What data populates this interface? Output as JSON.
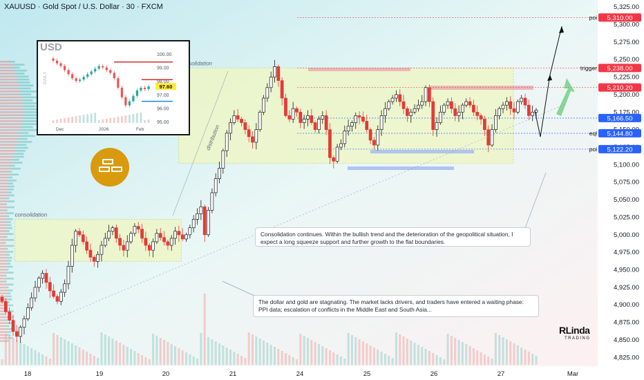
{
  "header": {
    "title": "XAUUSD · Gold Spot / U.S. Dollar · 30 · FXCM"
  },
  "chart_data": {
    "type": "candlestick",
    "y_axis": {
      "range": [
        4812.5,
        5335
      ],
      "ticks": [
        "5,325.00",
        "5,300.00",
        "5,275.00",
        "5,250.00",
        "5,225.00",
        "5,200.00",
        "5,175.00",
        "5,150.00",
        "5,125.00",
        "5,100.00",
        "5,075.00",
        "5,050.00",
        "5,025.00",
        "5,000.00",
        "4,975.00",
        "4,950.00",
        "4,925.00",
        "4,900.00",
        "4,875.00",
        "4,850.00",
        "4,825.00"
      ]
    },
    "x_axis": {
      "ticks": [
        "18",
        "19",
        "20",
        "21",
        "24",
        "25",
        "26",
        "27",
        "Mar"
      ]
    },
    "price_tags": [
      {
        "label": "poi",
        "value": 5310.0,
        "text": "5,310.00",
        "color": "#f23645"
      },
      {
        "label": "trigger",
        "value": 5238.0,
        "text": "5,238.00",
        "color": "#f23645"
      },
      {
        "label": "",
        "value": 5210.2,
        "text": "5,210.20",
        "color": "#f23645"
      },
      {
        "label": "",
        "value": 5166.5,
        "text": "5,166.50",
        "color": "#2962ff"
      },
      {
        "label": "eql",
        "value": 5144.8,
        "text": "5,144.80",
        "color": "#2962ff"
      },
      {
        "label": "poi",
        "value": 5122.2,
        "text": "5,122.20",
        "color": "#2962ff"
      }
    ],
    "zones": [
      {
        "label": "consolidation",
        "from_day": 0.5,
        "to_day": 3.2,
        "low": 4962,
        "high": 5022
      },
      {
        "label": "Consolidation",
        "from_day": 3.16,
        "to_day": 8.15,
        "low": 5102,
        "high": 5238
      }
    ],
    "annotations": [
      "distribution"
    ],
    "closes": [
      4905,
      4890,
      4878,
      4862,
      4855,
      4868,
      4880,
      4896,
      4910,
      4925,
      4938,
      4945,
      4932,
      4920,
      4912,
      4905,
      4918,
      4930,
      4955,
      4985,
      5005,
      5000,
      4990,
      4978,
      4968,
      4962,
      4972,
      4985,
      4995,
      5005,
      5010,
      4995,
      4985,
      4978,
      4990,
      5002,
      5012,
      5008,
      4995,
      4985,
      4978,
      4990,
      5002,
      4996,
      4990,
      4985,
      4995,
      5005,
      5000,
      4994,
      5000,
      5010,
      5022,
      5030,
      5040,
      5000,
      5035,
      5060,
      5080,
      5095,
      5120,
      5145,
      5160,
      5170,
      5165,
      5160,
      5150,
      5140,
      5132,
      5150,
      5175,
      5195,
      5210,
      5225,
      5240,
      5220,
      5195,
      5170,
      5165,
      5180,
      5175,
      5160,
      5165,
      5170,
      5160,
      5150,
      5165,
      5170,
      5150,
      5110,
      5105,
      5125,
      5130,
      5148,
      5155,
      5160,
      5170,
      5168,
      5162,
      5150,
      5135,
      5128,
      5150,
      5170,
      5180,
      5190,
      5195,
      5200,
      5190,
      5180,
      5170,
      5175,
      5180,
      5185,
      5190,
      5210,
      5190,
      5150,
      5160,
      5175,
      5185,
      5190,
      5180,
      5170,
      5175,
      5185,
      5190,
      5185,
      5175,
      5170,
      5165,
      5150,
      5128,
      5150,
      5170,
      5180,
      5185,
      5190,
      5180,
      5175,
      5190,
      5195,
      5185,
      5170,
      5175,
      5178
    ],
    "inset": {
      "title": "USD",
      "side_label": "DAILY",
      "y_ticks": [
        "100.00",
        "99.00",
        "98.00",
        "97.00",
        "96.00",
        "95.00"
      ],
      "x_ticks": [
        "Dec",
        "2026",
        "Feb"
      ],
      "price_tag": "97.60",
      "closes": [
        99.5,
        99.3,
        99.1,
        98.8,
        98.5,
        98.2,
        98.0,
        98.1,
        98.3,
        98.5,
        98.7,
        98.9,
        99.1,
        99.0,
        98.8,
        98.6,
        98.2,
        97.5,
        96.8,
        96.2,
        96.5,
        96.9,
        97.3,
        97.5,
        97.4,
        97.6
      ]
    }
  },
  "callouts": {
    "upper": "Consolidation continues. Within the bullish trend and the deterioration of the geopolitical situation, I expect a long squeeze support and further growth to the flat boundaries.",
    "lower": "The dollar and gold are stagnating. The market lacks drivers, and traders have entered a waiting phase: PPI data; escalation of conflicts in the Middle East and South Asia..."
  },
  "brand": {
    "name": "RLinda",
    "sub": "TRADING"
  },
  "colors": {
    "up": "#26a69a",
    "down": "#ef5350",
    "candle_up": "#1a1a1a",
    "candle_down": "#e53935",
    "zone_fill": "#eef6c8",
    "zone_border": "#c8d98a"
  }
}
